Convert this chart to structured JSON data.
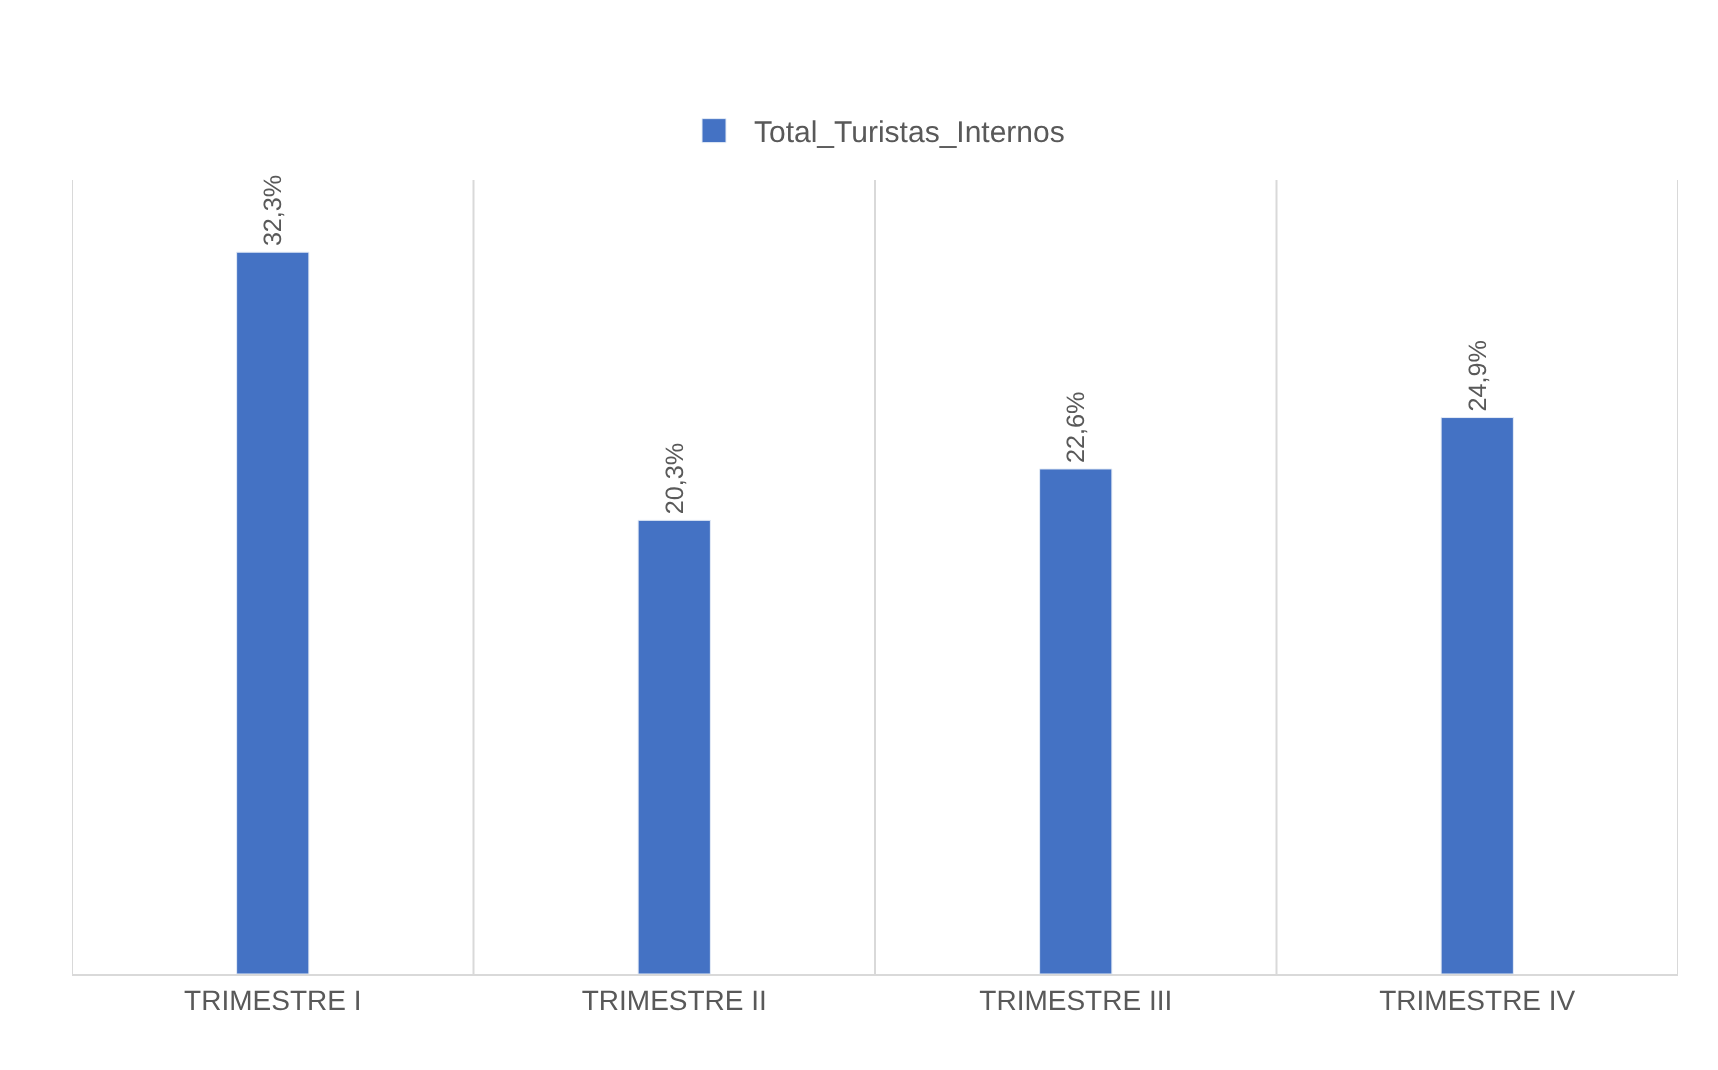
{
  "chart_data": {
    "type": "bar",
    "categories": [
      "TRIMESTRE I",
      "TRIMESTRE II",
      "TRIMESTRE III",
      "TRIMESTRE IV"
    ],
    "series": [
      {
        "name": "Total_Turistas_Internos",
        "color": "#4472c4",
        "values": [
          32.3,
          20.3,
          22.6,
          24.9
        ],
        "value_labels": [
          "32,3%",
          "20,3%",
          "22,6%",
          "24,9%"
        ]
      }
    ],
    "legend": "top",
    "grid": "x"
  }
}
